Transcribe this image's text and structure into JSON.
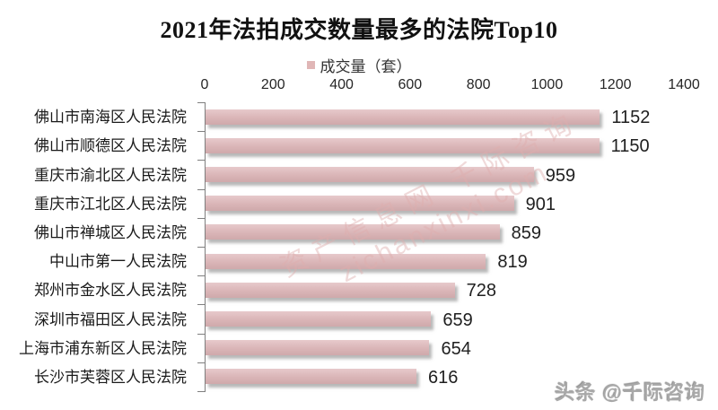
{
  "chart_data": {
    "type": "bar",
    "orientation": "horizontal",
    "title": "2021年法拍成交数量最多的法院Top10",
    "legend": "成交量（套）",
    "categories": [
      "佛山市南海区人民法院",
      "佛山市顺德区人民法院",
      "重庆市渝北区人民法院",
      "重庆市江北区人民法院",
      "佛山市禅城区人民法院",
      "中山市第一人民法院",
      "郑州市金水区人民法院",
      "深圳市福田区人民法院",
      "上海市浦东新区人民法院",
      "长沙市芙蓉区人民法院"
    ],
    "values": [
      1152,
      1150,
      959,
      901,
      859,
      819,
      728,
      659,
      654,
      616
    ],
    "xlim": [
      0,
      1400
    ],
    "x_ticks": [
      0,
      200,
      400,
      600,
      800,
      1000,
      1200,
      1400
    ],
    "bar_color": "#dab5b7",
    "legend_position": "top",
    "grid": false
  },
  "watermark": {
    "line1": "资产信息网 千际咨询",
    "line2": "zichanxinxi.com"
  },
  "footer": {
    "brand": "头条 @千际咨询"
  }
}
